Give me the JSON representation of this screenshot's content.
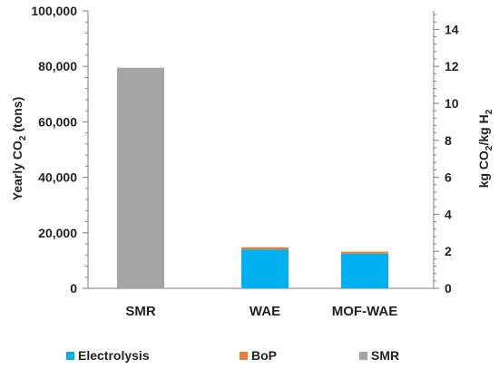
{
  "chart_data": {
    "type": "bar",
    "stacked": true,
    "categories": [
      "SMR",
      "WAE",
      "MOF-WAE"
    ],
    "series": [
      {
        "name": "Electrolysis",
        "color": "#00B0F0",
        "values": [
          0,
          14000,
          12500
        ]
      },
      {
        "name": "BoP",
        "color": "#ED7D31",
        "values": [
          0,
          800,
          700
        ]
      },
      {
        "name": "SMR",
        "color": "#A5A5A5",
        "values": [
          79500,
          0,
          0
        ]
      }
    ],
    "ylabel_left": {
      "prefix": "Yearly CO",
      "sub": "2",
      "suffix": " (tons)"
    },
    "ylabel_right": {
      "p1": "kg CO",
      "s1": "2",
      "p2": "/kg H",
      "s2": "2"
    },
    "ylim_left": [
      0,
      100000
    ],
    "yticks_left": [
      "0",
      "20,000",
      "40,000",
      "60,000",
      "80,000",
      "100,000"
    ],
    "ylim_right": [
      0,
      15
    ],
    "yticks_right": [
      "0",
      "2",
      "4",
      "6",
      "8",
      "10",
      "12",
      "14"
    ],
    "legend_position": "bottom",
    "grid": false
  }
}
